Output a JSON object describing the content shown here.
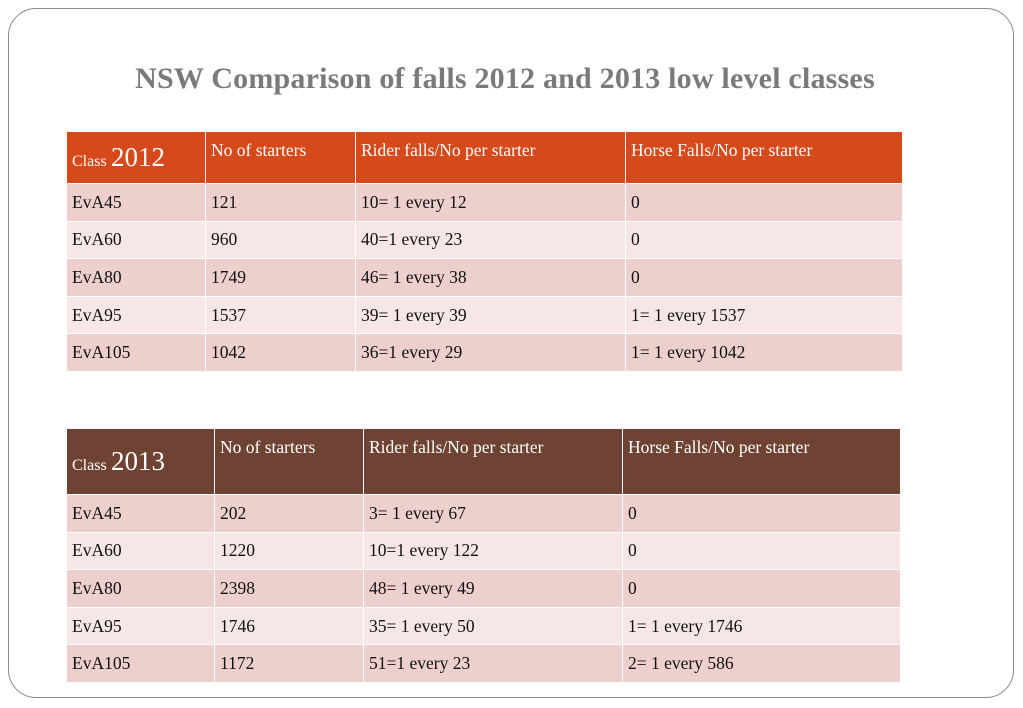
{
  "title": "NSW Comparison of falls 2012 and 2013 low level classes",
  "colors": {
    "header_2012": "#d6491b",
    "header_2013": "#6f4333",
    "row_odd": "#edcfcd",
    "row_even": "#f6e7e6",
    "title_text": "#7a7a7a"
  },
  "tables": [
    {
      "headers": {
        "class_word": "Class",
        "class_year": "2012",
        "starters": "No of starters",
        "rider_falls": "Rider falls/No per starter",
        "horse_falls": "Horse Falls/No per starter"
      },
      "rows": [
        {
          "class": "EvA45",
          "starters": "121",
          "rider_falls": "10= 1 every 12",
          "horse_falls": "0"
        },
        {
          "class": "EvA60",
          "starters": "960",
          "rider_falls": "40=1 every 23",
          "horse_falls": "0"
        },
        {
          "class": "EvA80",
          "starters": "1749",
          "rider_falls": "46= 1 every 38",
          "horse_falls": "0"
        },
        {
          "class": "EvA95",
          "starters": "1537",
          "rider_falls": "39= 1 every 39",
          "horse_falls": "1= 1 every 1537"
        },
        {
          "class": "EvA105",
          "starters": "1042",
          "rider_falls": "36=1 every 29",
          "horse_falls": "1= 1 every 1042"
        }
      ]
    },
    {
      "headers": {
        "class_word": "Class",
        "class_year": "2013",
        "starters": "No of starters",
        "rider_falls": "Rider falls/No per starter",
        "horse_falls": "Horse Falls/No per starter"
      },
      "rows": [
        {
          "class": "EvA45",
          "starters": "202",
          "rider_falls": "3= 1 every 67",
          "horse_falls": "0"
        },
        {
          "class": "EvA60",
          "starters": "1220",
          "rider_falls": "10=1 every 122",
          "horse_falls": "0"
        },
        {
          "class": "EvA80",
          "starters": "2398",
          "rider_falls": "48= 1 every 49",
          "horse_falls": "0"
        },
        {
          "class": "EvA95",
          "starters": "1746",
          "rider_falls": "35= 1 every 50",
          "horse_falls": "1= 1 every 1746"
        },
        {
          "class": "EvA105",
          "starters": "1172",
          "rider_falls": "51=1 every 23",
          "horse_falls": "2= 1 every 586"
        }
      ]
    }
  ]
}
